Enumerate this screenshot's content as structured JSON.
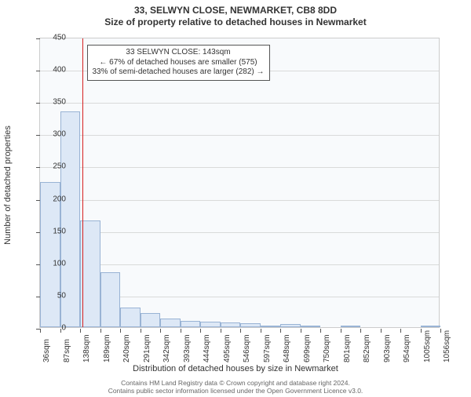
{
  "title_line1": "33, SELWYN CLOSE, NEWMARKET, CB8 8DD",
  "title_line2": "Size of property relative to detached houses in Newmarket",
  "y_axis_label": "Number of detached properties",
  "x_axis_label": "Distribution of detached houses by size in Newmarket",
  "chart": {
    "type": "histogram",
    "background_color": "#f8fafc",
    "grid_color": "#cccccc",
    "bar_fill": "#dde8f6",
    "bar_stroke": "#99b3d4",
    "marker_color": "#d62020",
    "marker_x_value": 143,
    "ylim": [
      0,
      450
    ],
    "ytick_step": 50,
    "yticks": [
      0,
      50,
      100,
      150,
      200,
      250,
      300,
      350,
      400,
      450
    ],
    "xlim": [
      36,
      1056
    ],
    "xticks": [
      36,
      87,
      138,
      189,
      240,
      291,
      342,
      393,
      444,
      495,
      546,
      597,
      648,
      699,
      750,
      801,
      852,
      903,
      954,
      1005,
      1056
    ],
    "xtick_labels": [
      "36sqm",
      "87sqm",
      "138sqm",
      "189sqm",
      "240sqm",
      "291sqm",
      "342sqm",
      "393sqm",
      "444sqm",
      "495sqm",
      "546sqm",
      "597sqm",
      "648sqm",
      "699sqm",
      "750sqm",
      "801sqm",
      "852sqm",
      "903sqm",
      "954sqm",
      "1005sqm",
      "1056sqm"
    ],
    "bar_width_value": 51,
    "bars": [
      {
        "x": 36,
        "count": 225
      },
      {
        "x": 87,
        "count": 335
      },
      {
        "x": 138,
        "count": 165
      },
      {
        "x": 189,
        "count": 85
      },
      {
        "x": 240,
        "count": 30
      },
      {
        "x": 291,
        "count": 22
      },
      {
        "x": 342,
        "count": 13
      },
      {
        "x": 393,
        "count": 10
      },
      {
        "x": 444,
        "count": 8
      },
      {
        "x": 495,
        "count": 7
      },
      {
        "x": 546,
        "count": 6
      },
      {
        "x": 597,
        "count": 1
      },
      {
        "x": 648,
        "count": 5
      },
      {
        "x": 699,
        "count": 3
      },
      {
        "x": 750,
        "count": 0
      },
      {
        "x": 801,
        "count": 2
      },
      {
        "x": 852,
        "count": 0
      },
      {
        "x": 903,
        "count": 0
      },
      {
        "x": 954,
        "count": 0
      },
      {
        "x": 1005,
        "count": 2
      }
    ]
  },
  "annotation": {
    "line1": "33 SELWYN CLOSE: 143sqm",
    "line2": "← 67% of detached houses are smaller (575)",
    "line3": "33% of semi-detached houses are larger (282) →",
    "border_color": "#555555",
    "bg_color": "#ffffff",
    "text_color": "#333333",
    "fontsize": 10
  },
  "footer_line1": "Contains HM Land Registry data © Crown copyright and database right 2024.",
  "footer_line2": "Contains public sector information licensed under the Open Government Licence v3.0."
}
